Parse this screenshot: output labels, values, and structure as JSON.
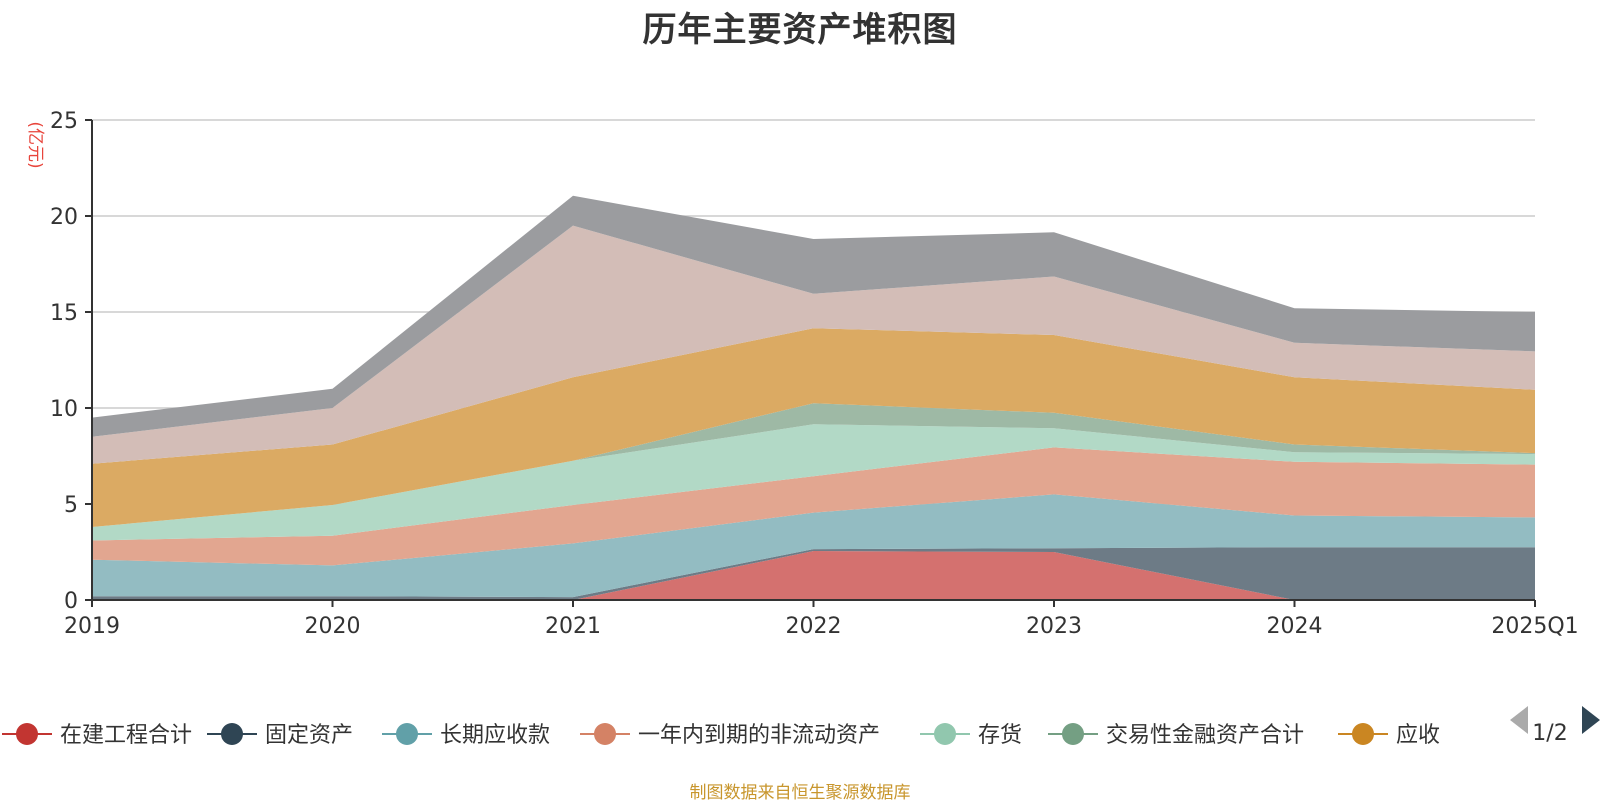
{
  "chart_data": {
    "type": "area",
    "title": "历年主要资产堆积图",
    "ylabel": "(亿元)",
    "xlabel": "",
    "categories": [
      "2019",
      "2020",
      "2021",
      "2022",
      "2023",
      "2024",
      "2025Q1"
    ],
    "ylim": [
      0,
      25
    ],
    "yticks": [
      0,
      5,
      10,
      15,
      20,
      25
    ],
    "grid": true,
    "stacked": true,
    "series": [
      {
        "name": "在建工程合计",
        "color": "#c23531",
        "fill": "#d4716f",
        "values": [
          0,
          0,
          0,
          2.55,
          2.5,
          0,
          0
        ]
      },
      {
        "name": "固定资产",
        "color": "#2f4554",
        "fill": "#6d7b86",
        "values": [
          0.2,
          0.2,
          0.15,
          0.1,
          0.2,
          2.75,
          2.75
        ]
      },
      {
        "name": "长期应收款",
        "color": "#61a0a8",
        "fill": "#93bcc2",
        "values": [
          1.9,
          1.6,
          2.8,
          1.9,
          2.8,
          1.65,
          1.55
        ]
      },
      {
        "name": "一年内到期的非流动资产",
        "color": "#d48265",
        "fill": "#e2a690",
        "values": [
          1.0,
          1.55,
          2.0,
          1.9,
          2.45,
          2.8,
          2.75
        ]
      },
      {
        "name": "存货",
        "color": "#91c7ae",
        "fill": "#b2d9c6",
        "values": [
          0.7,
          1.6,
          2.3,
          2.7,
          1.0,
          0.5,
          0.55
        ]
      },
      {
        "name": "交易性金融资产合计",
        "color": "#749f83",
        "fill": "#9eb9a5",
        "values": [
          0,
          0,
          0,
          1.1,
          0.8,
          0.4,
          0.05
        ]
      },
      {
        "name": "应收",
        "color": "#ca8622",
        "fill": "#dbaa63",
        "values": [
          3.3,
          3.15,
          4.35,
          3.9,
          4.05,
          3.5,
          3.3
        ]
      },
      {
        "name": "",
        "color": "#bda29a",
        "fill": "#d3bdb7",
        "values": [
          1.4,
          1.9,
          7.9,
          1.8,
          3.05,
          1.8,
          2.0
        ]
      },
      {
        "name": "",
        "color": "#6e7074",
        "fill": "#9b9c9f",
        "values": [
          1.0,
          1.0,
          1.55,
          2.85,
          2.3,
          1.8,
          2.05
        ]
      }
    ]
  },
  "legend": {
    "page_indicator": "1/2"
  },
  "source_note": "制图数据来自恒生聚源数据库"
}
